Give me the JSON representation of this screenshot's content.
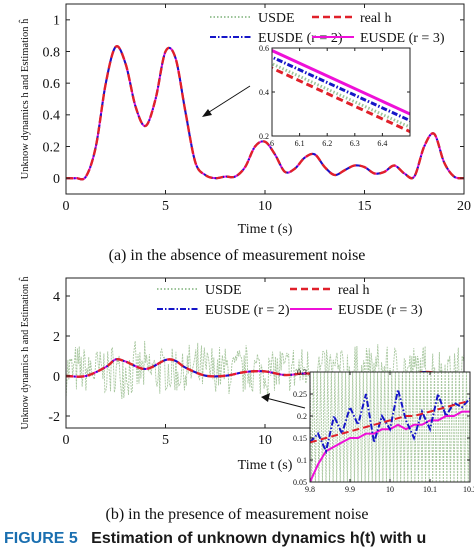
{
  "captions": {
    "a": "(a)  in the absence of measurement noise",
    "b": "(b)  in the presence of measurement noise"
  },
  "figure_caption": {
    "label": "FIGURE 5",
    "text": "Estimation of unknown dynamics h(t) with u"
  },
  "colors": {
    "usde": "#9cc49a",
    "usde_noise": "#a8c79f",
    "real": "#e0202a",
    "eusde2": "#1515c8",
    "eusde3": "#ee10d8"
  },
  "chart_data": [
    {
      "id": "a",
      "type": "line",
      "xlabel": "Time t (s)",
      "ylabel": "Unknow dynamics h and Estimation ĥ",
      "xlim": [
        0,
        20
      ],
      "ylim": [
        -0.1,
        1.1
      ],
      "xticks": [
        "0",
        "5",
        "10",
        "15",
        "20"
      ],
      "yticks": [
        "0",
        "0.2",
        "0.4",
        "0.6",
        "0.8",
        "1"
      ],
      "legend": [
        "USDE",
        "real h",
        "EUSDE (r = 2)",
        "EUSDE (r = 3)"
      ],
      "legend_position": "top-right",
      "grid": false,
      "x": [
        0,
        0.5,
        1,
        1.5,
        2,
        2.5,
        3,
        3.5,
        4,
        4.5,
        5,
        5.5,
        6,
        6.5,
        7,
        7.5,
        8,
        8.5,
        9,
        9.5,
        10,
        10.5,
        11,
        11.5,
        12,
        12.5,
        13,
        13.5,
        14,
        14.5,
        15,
        15.5,
        16,
        16.5,
        17,
        17.5,
        18,
        18.5,
        19,
        19.5,
        20
      ],
      "series": [
        {
          "name": "USDE",
          "values": [
            0,
            0,
            0.01,
            0.2,
            0.6,
            0.83,
            0.72,
            0.45,
            0.33,
            0.5,
            0.8,
            0.76,
            0.42,
            0.1,
            0.02,
            0,
            0.01,
            0.01,
            0.07,
            0.2,
            0.23,
            0.15,
            0.04,
            0.06,
            0.13,
            0.15,
            0.07,
            0.02,
            0.05,
            0.08,
            0.07,
            0.03,
            0.04,
            0.08,
            0.03,
            0.01,
            0.2,
            0.28,
            0.1,
            0.01,
            0
          ]
        },
        {
          "name": "real h",
          "values": [
            0,
            0,
            0.01,
            0.2,
            0.6,
            0.83,
            0.72,
            0.45,
            0.33,
            0.5,
            0.8,
            0.76,
            0.42,
            0.1,
            0.02,
            0,
            0.01,
            0.01,
            0.07,
            0.2,
            0.23,
            0.15,
            0.04,
            0.06,
            0.13,
            0.15,
            0.07,
            0.02,
            0.05,
            0.08,
            0.07,
            0.03,
            0.04,
            0.08,
            0.03,
            0.01,
            0.2,
            0.28,
            0.1,
            0.01,
            0
          ]
        },
        {
          "name": "EUSDE (r = 2)",
          "values": [
            0,
            0,
            0.01,
            0.2,
            0.6,
            0.83,
            0.72,
            0.45,
            0.33,
            0.5,
            0.8,
            0.76,
            0.42,
            0.1,
            0.02,
            0,
            0.01,
            0.01,
            0.07,
            0.2,
            0.23,
            0.15,
            0.04,
            0.06,
            0.13,
            0.15,
            0.07,
            0.02,
            0.05,
            0.08,
            0.07,
            0.03,
            0.04,
            0.08,
            0.03,
            0.01,
            0.2,
            0.28,
            0.1,
            0.01,
            0
          ]
        },
        {
          "name": "EUSDE (r = 3)",
          "values": [
            0,
            0,
            0.01,
            0.2,
            0.6,
            0.83,
            0.72,
            0.45,
            0.33,
            0.5,
            0.8,
            0.76,
            0.42,
            0.1,
            0.02,
            0,
            0.01,
            0.01,
            0.07,
            0.2,
            0.23,
            0.15,
            0.04,
            0.06,
            0.13,
            0.15,
            0.07,
            0.02,
            0.05,
            0.08,
            0.07,
            0.03,
            0.04,
            0.08,
            0.03,
            0.01,
            0.2,
            0.28,
            0.1,
            0.01,
            0
          ]
        }
      ],
      "inset": {
        "xlim": [
          6,
          6.5
        ],
        "ylim": [
          0.2,
          0.6
        ],
        "xticks": [
          "6",
          "6.1",
          "6.2",
          "6.3",
          "6.4"
        ],
        "yticks": [
          "0.2",
          "0.4",
          "0.6"
        ],
        "x": [
          5.98,
          6.5
        ],
        "series": [
          {
            "name": "USDE",
            "values": [
              0.54,
              0.24
            ]
          },
          {
            "name": "real h",
            "values": [
              0.52,
              0.22
            ]
          },
          {
            "name": "EUSDE (r = 2)",
            "values": [
              0.57,
              0.27
            ]
          },
          {
            "name": "EUSDE (r = 3)",
            "values": [
              0.6,
              0.3
            ]
          }
        ]
      }
    },
    {
      "id": "b",
      "type": "line",
      "xlabel": "Time t (s)",
      "ylabel": "Unknow dynamics h and Estimation ĥ",
      "xlim": [
        0,
        20
      ],
      "ylim": [
        -2.6,
        4.9
      ],
      "xticks": [
        "0",
        "5",
        "10",
        "15",
        "20"
      ],
      "yticks": [
        "-2",
        "0",
        "2",
        "4"
      ],
      "legend": [
        "USDE",
        "real h",
        "EUSDE (r = 2)",
        "EUSDE (r = 3)"
      ],
      "legend_position": "top-right",
      "grid": false,
      "noise_band": [
        -1.2,
        1.8
      ],
      "x": [
        0,
        1,
        2,
        2.5,
        3,
        4,
        5,
        5.5,
        6,
        7,
        8,
        9,
        10,
        11,
        12,
        13,
        14,
        15,
        16,
        17,
        18,
        19,
        20
      ],
      "series": [
        {
          "name": "real h",
          "values": [
            0,
            0,
            0.45,
            0.83,
            0.72,
            0.35,
            0.8,
            0.76,
            0.42,
            0.02,
            0.01,
            0.2,
            0.23,
            0.05,
            0.13,
            0.07,
            0.05,
            0.07,
            0.04,
            0.03,
            0.2,
            0.1,
            0
          ]
        },
        {
          "name": "EUSDE (r = 2)",
          "values": [
            0,
            0,
            0.45,
            0.83,
            0.72,
            0.35,
            0.8,
            0.76,
            0.42,
            0.02,
            0.01,
            0.2,
            0.23,
            0.05,
            0.13,
            0.07,
            0.05,
            0.07,
            0.04,
            0.03,
            0.2,
            0.1,
            0
          ]
        },
        {
          "name": "EUSDE (r = 3)",
          "values": [
            0,
            0,
            0.45,
            0.83,
            0.72,
            0.35,
            0.8,
            0.76,
            0.42,
            0.02,
            0.01,
            0.2,
            0.23,
            0.05,
            0.13,
            0.07,
            0.05,
            0.07,
            0.04,
            0.03,
            0.2,
            0.1,
            0
          ]
        }
      ],
      "inset": {
        "xlim": [
          9.8,
          10.2
        ],
        "ylim": [
          0.05,
          0.3
        ],
        "xticks": [
          "9.8",
          "9.9",
          "10",
          "10.1",
          "10.2"
        ],
        "yticks": [
          "0.05",
          "0.1",
          "0.15",
          "0.2",
          "0.25",
          "0.3"
        ],
        "x": [
          9.8,
          9.82,
          9.84,
          9.86,
          9.88,
          9.9,
          9.92,
          9.94,
          9.96,
          9.98,
          10,
          10.02,
          10.04,
          10.06,
          10.08,
          10.1,
          10.12,
          10.14,
          10.16,
          10.18,
          10.2
        ],
        "series": [
          {
            "name": "real h",
            "values": [
              0.14,
              0.145,
              0.15,
              0.155,
              0.16,
              0.165,
              0.17,
              0.175,
              0.18,
              0.185,
              0.19,
              0.195,
              0.2,
              0.2,
              0.205,
              0.21,
              0.215,
              0.22,
              0.225,
              0.23,
              0.235
            ]
          },
          {
            "name": "EUSDE (r = 2)",
            "values": [
              0.14,
              0.16,
              0.12,
              0.2,
              0.16,
              0.22,
              0.18,
              0.25,
              0.14,
              0.2,
              0.17,
              0.26,
              0.19,
              0.15,
              0.21,
              0.17,
              0.25,
              0.2,
              0.23,
              0.22,
              0.24
            ]
          },
          {
            "name": "EUSDE (r = 3)",
            "values": [
              0.05,
              0.09,
              0.12,
              0.13,
              0.14,
              0.15,
              0.15,
              0.16,
              0.16,
              0.17,
              0.17,
              0.18,
              0.17,
              0.18,
              0.18,
              0.19,
              0.19,
              0.2,
              0.2,
              0.21,
              0.21
            ]
          }
        ]
      }
    }
  ]
}
